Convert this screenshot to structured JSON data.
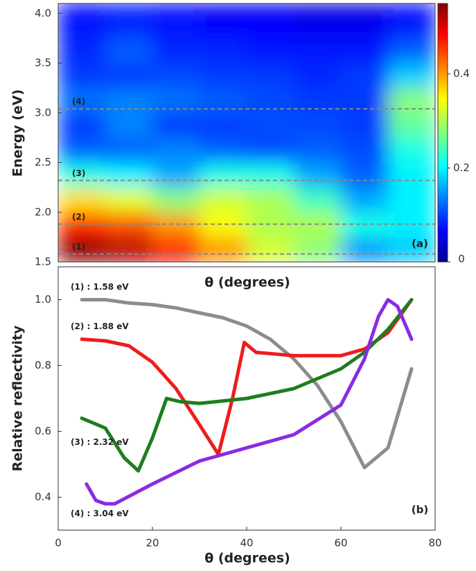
{
  "chart_data": [
    {
      "type": "heatmap",
      "y_label": "Energy (eV)",
      "x_label": "θ (degrees)",
      "panel_label": "(a)",
      "xlim": [
        0,
        80
      ],
      "ylim": [
        1.5,
        4.1
      ],
      "yticks": [
        1.5,
        {
          "value": 2,
          "label": "2.0"
        },
        2.5,
        {
          "value": 3,
          "label": "3.0"
        },
        3.5,
        {
          "value": 4,
          "label": "4.0"
        }
      ],
      "x_bins": [
        0,
        10,
        20,
        30,
        40,
        50,
        60,
        70,
        80
      ],
      "y_bins": [
        1.5,
        1.75,
        2,
        2.25,
        2.5,
        2.75,
        3,
        3.25,
        3.5,
        3.75,
        4,
        4.1
      ],
      "z": [
        [
          0.54,
          0.52,
          0.47,
          0.4,
          0.32,
          0.28,
          0.15,
          0.18
        ],
        [
          0.46,
          0.44,
          0.4,
          0.34,
          0.3,
          0.3,
          0.22,
          0.2
        ],
        [
          0.36,
          0.33,
          0.28,
          0.32,
          0.3,
          0.24,
          0.16,
          0.2
        ],
        [
          0.22,
          0.2,
          0.16,
          0.22,
          0.22,
          0.16,
          0.12,
          0.2
        ],
        [
          0.12,
          0.12,
          0.14,
          0.12,
          0.11,
          0.12,
          0.11,
          0.22
        ],
        [
          0.1,
          0.14,
          0.1,
          0.1,
          0.11,
          0.11,
          0.1,
          0.26
        ],
        [
          0.13,
          0.14,
          0.13,
          0.12,
          0.11,
          0.1,
          0.1,
          0.28
        ],
        [
          0.1,
          0.1,
          0.11,
          0.1,
          0.1,
          0.09,
          0.1,
          0.18
        ],
        [
          0.09,
          0.12,
          0.09,
          0.09,
          0.08,
          0.08,
          0.08,
          0.12
        ],
        [
          0.08,
          0.09,
          0.08,
          0.07,
          0.07,
          0.06,
          0.06,
          0.08
        ],
        [
          0.07,
          0.08,
          0.07,
          0.06,
          0.06,
          0.05,
          0.05,
          0.07
        ]
      ],
      "clim": [
        0,
        0.55
      ],
      "cticks": [
        0,
        0.2,
        0.4
      ],
      "lines": [
        {
          "value": 1.58,
          "label": "(1)"
        },
        {
          "value": 1.88,
          "label": "(2)"
        },
        {
          "value": 2.32,
          "label": "(3)"
        },
        {
          "value": 3.04,
          "label": "(4)"
        }
      ],
      "line_color": "#888888"
    },
    {
      "type": "line",
      "y_label": "Relative reflectivity",
      "x_label": "θ (degrees)",
      "panel_label": "(b)",
      "xlim": [
        0,
        80
      ],
      "ylim": [
        0.3,
        1.1
      ],
      "xticks": [
        0,
        20,
        40,
        60,
        80
      ],
      "yticks": [
        0.4,
        0.6,
        0.8,
        {
          "value": 1,
          "label": "1.0"
        }
      ],
      "series": [
        {
          "name": "(1) : 1.58 eV",
          "color": "#8c8c8c",
          "x": [
            5,
            10,
            15,
            20,
            25,
            30,
            35,
            40,
            45,
            50,
            55,
            60,
            65,
            70,
            75
          ],
          "values": [
            1.0,
            1.0,
            0.99,
            0.985,
            0.975,
            0.96,
            0.945,
            0.92,
            0.88,
            0.82,
            0.74,
            0.63,
            0.49,
            0.55,
            0.79
          ]
        },
        {
          "name": "(2) : 1.88 eV",
          "color": "#ee1c1c",
          "x": [
            5,
            10,
            15,
            20,
            25,
            30,
            34,
            37,
            39.5,
            42,
            50,
            60,
            65,
            70,
            75
          ],
          "values": [
            0.88,
            0.875,
            0.86,
            0.81,
            0.73,
            0.62,
            0.53,
            0.7,
            0.87,
            0.84,
            0.83,
            0.83,
            0.85,
            0.9,
            1.0
          ]
        },
        {
          "name": "(3) : 2.32 eV",
          "color": "#1e7d1e",
          "x": [
            5,
            10,
            14,
            17,
            20,
            23,
            26,
            30,
            40,
            50,
            60,
            65,
            70,
            75
          ],
          "values": [
            0.64,
            0.61,
            0.52,
            0.48,
            0.58,
            0.7,
            0.69,
            0.685,
            0.7,
            0.73,
            0.79,
            0.84,
            0.91,
            1.0
          ]
        },
        {
          "name": "(4) : 3.04 eV",
          "color": "#8a2be2",
          "x": [
            6,
            8,
            10,
            12,
            20,
            30,
            40,
            50,
            60,
            65,
            68,
            70,
            72,
            75
          ],
          "values": [
            0.44,
            0.39,
            0.38,
            0.38,
            0.44,
            0.51,
            0.55,
            0.59,
            0.68,
            0.82,
            0.95,
            1.0,
            0.98,
            0.88
          ]
        }
      ]
    }
  ]
}
